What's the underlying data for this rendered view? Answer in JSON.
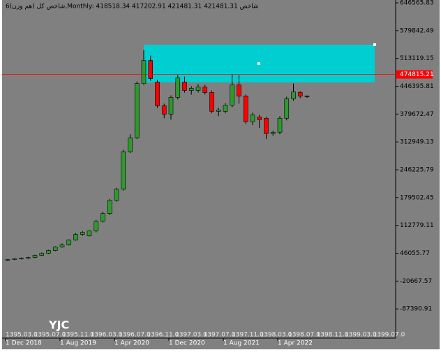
{
  "chart_data": {
    "type": "candlestick",
    "title": "شاخص کل (هم وزن)6,Monthly:  418518.34 417202.91 421481.31 421481.31  شاخص",
    "categories": [
      "1 Dec 2018",
      null,
      null,
      null,
      null,
      null,
      null,
      null,
      "1 Aug 2019",
      null,
      null,
      null,
      null,
      null,
      null,
      null,
      "1 Apr 2020",
      null,
      null,
      null,
      null,
      null,
      null,
      null,
      "1 Dec 2020",
      null,
      null,
      null,
      null,
      null,
      null,
      null,
      "1 Aug 2021",
      null,
      null,
      null,
      null,
      null,
      null,
      null,
      "1 Apr 2022",
      null,
      null,
      null,
      null
    ],
    "x2_labels": [
      "1395.03.0",
      "1395.07.0",
      "1395.11.0",
      "1396.03.0",
      "1396.07.0",
      "1396.11.0",
      "1397.03.0",
      "1397.07.0",
      "1397.11.0",
      "1398.03.0",
      "1398.07.0",
      "1398.11.0",
      "1399.03.0",
      "1399.07.0"
    ],
    "open": [
      29400,
      31100,
      32700,
      34400,
      36100,
      41100,
      46100,
      52700,
      61100,
      66100,
      77800,
      91100,
      87800,
      99500,
      122900,
      141200,
      172900,
      199600,
      289600,
      323000,
      453100,
      508100,
      456400,
      399700,
      379700,
      419700,
      456400,
      436400,
      436400,
      444700,
      431400,
      386400,
      386400,
      401000,
      449700,
      423000,
      361400,
      373000,
      369700,
      333000,
      336300,
      369700,
      416400,
      431400,
      423000
    ],
    "high": [
      32700,
      34400,
      36100,
      37800,
      42800,
      47800,
      54400,
      62800,
      69400,
      79400,
      94400,
      99500,
      101100,
      126200,
      146200,
      176200,
      202900,
      294600,
      331300,
      458100,
      533100,
      519800,
      461400,
      404700,
      424700,
      473100,
      469700,
      446400,
      451400,
      449700,
      436400,
      394700,
      406000,
      474800,
      473100,
      426300,
      383000,
      378000,
      373000,
      339600,
      374700,
      421400,
      453100,
      434700,
      424700
    ],
    "low": [
      27700,
      29400,
      31100,
      32700,
      34400,
      39400,
      44400,
      51100,
      59400,
      64400,
      76100,
      87800,
      86100,
      96100,
      119600,
      137900,
      169600,
      196300,
      286300,
      319700,
      449700,
      459800,
      394700,
      369700,
      366400,
      414700,
      431400,
      426400,
      431400,
      426400,
      381400,
      374700,
      381400,
      396000,
      404700,
      356400,
      353000,
      346400,
      319700,
      328000,
      331300,
      364700,
      411400,
      418000,
      418500
    ],
    "close": [
      31100,
      32700,
      34400,
      36100,
      41100,
      46100,
      52700,
      61100,
      66100,
      77800,
      91100,
      96100,
      99500,
      122900,
      141200,
      172900,
      199600,
      289600,
      323000,
      453100,
      508100,
      464800,
      399700,
      379700,
      419700,
      466400,
      436400,
      441400,
      444700,
      431400,
      386400,
      389700,
      401000,
      449700,
      423000,
      361400,
      378000,
      366400,
      333000,
      336300,
      369700,
      416400,
      433000,
      423000,
      421500
    ],
    "up_color": "#2e9a2e",
    "down_color": "#ff0000",
    "ylim": [
      -154114.25,
      653238.17
    ],
    "yticks": [
      646565.83,
      579842.49,
      513119.15,
      446395.81,
      379672.47,
      312949.13,
      246225.79,
      179502.45,
      112779.11,
      46055.77,
      -20667.57,
      -87390.91
    ],
    "current_price": 474815.21,
    "current_price_color": "#ff0000",
    "watermark": "YJC"
  }
}
